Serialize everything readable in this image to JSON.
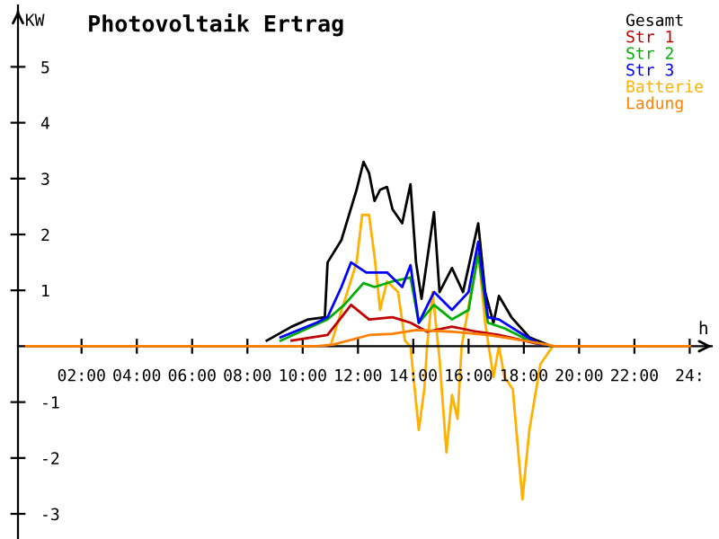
{
  "chart_data": {
    "type": "line",
    "title": "Photovoltaik Ertrag",
    "ylabel": "KW",
    "xlabel": "h",
    "xlim": [
      -0.3,
      24.8
    ],
    "ylim": [
      -3.45,
      6.1
    ],
    "xticks": [
      {
        "value": 2,
        "label": "02:00"
      },
      {
        "value": 4,
        "label": "04:00"
      },
      {
        "value": 6,
        "label": "06:00"
      },
      {
        "value": 8,
        "label": "08:00"
      },
      {
        "value": 10,
        "label": "10:00"
      },
      {
        "value": 12,
        "label": "12:00"
      },
      {
        "value": 14,
        "label": "14:00"
      },
      {
        "value": 16,
        "label": "16:00"
      },
      {
        "value": 18,
        "label": "18:00"
      },
      {
        "value": 20,
        "label": "20:00"
      },
      {
        "value": 22,
        "label": "22:00"
      },
      {
        "value": 24,
        "label": "24:"
      }
    ],
    "yticks": [
      -3,
      -2,
      -1,
      1,
      2,
      3,
      4,
      5
    ],
    "legend": "top right",
    "grid": false,
    "marker": "none",
    "line_style": "solid",
    "series": [
      {
        "name": "Gesamt",
        "color": "#000000",
        "x": [
          8.7,
          9.6,
          10.2,
          10.8,
          10.9,
          11.4,
          11.95,
          12.2,
          12.4,
          12.6,
          12.8,
          13.05,
          13.25,
          13.6,
          13.9,
          14.1,
          14.3,
          14.75,
          14.95,
          15.4,
          15.8,
          16.35,
          16.6,
          16.9,
          17.1,
          17.55,
          18.2,
          18.85
        ],
        "values": [
          0.1,
          0.35,
          0.48,
          0.52,
          1.5,
          1.9,
          2.8,
          3.3,
          3.1,
          2.6,
          2.8,
          2.85,
          2.45,
          2.2,
          2.9,
          1.5,
          0.85,
          2.4,
          0.97,
          1.4,
          0.97,
          2.2,
          0.97,
          0.42,
          0.9,
          0.52,
          0.16,
          0.03
        ]
      },
      {
        "name": "Str 1",
        "color": "#c00000",
        "x": [
          9.6,
          10.9,
          11.75,
          12.4,
          13.25,
          13.9,
          14.5,
          15.4,
          16.3,
          17.1,
          18.0,
          18.6
        ],
        "values": [
          0.1,
          0.2,
          0.74,
          0.48,
          0.52,
          0.42,
          0.26,
          0.35,
          0.26,
          0.2,
          0.1,
          0.03
        ]
      },
      {
        "name": "Str 2",
        "color": "#00b000",
        "x": [
          9.2,
          10.9,
          11.5,
          12.2,
          12.6,
          13.25,
          13.9,
          14.2,
          14.75,
          15.4,
          16.0,
          16.35,
          16.7,
          17.3,
          18.2,
          18.6
        ],
        "values": [
          0.1,
          0.48,
          0.74,
          1.13,
          1.06,
          1.16,
          1.23,
          0.42,
          0.74,
          0.48,
          0.65,
          1.65,
          0.42,
          0.32,
          0.1,
          0.03
        ]
      },
      {
        "name": "Str 3",
        "color": "#0000ff",
        "x": [
          9.2,
          10.5,
          10.9,
          11.4,
          11.75,
          12.3,
          13.05,
          13.6,
          13.9,
          14.2,
          14.75,
          15.4,
          16.0,
          16.35,
          16.7,
          17.1,
          18.0,
          18.6
        ],
        "values": [
          0.16,
          0.42,
          0.52,
          1.06,
          1.5,
          1.32,
          1.32,
          1.06,
          1.45,
          0.42,
          0.97,
          0.65,
          0.97,
          1.87,
          0.52,
          0.48,
          0.2,
          0.03
        ]
      },
      {
        "name": "Batterie",
        "color": "#ffb000",
        "x": [
          11.0,
          11.95,
          12.15,
          12.4,
          12.6,
          12.8,
          13.05,
          13.45,
          13.7,
          13.9,
          14.2,
          14.4,
          14.5,
          14.7,
          14.95,
          15.2,
          15.4,
          15.6,
          15.75,
          16.35,
          16.6,
          16.9,
          17.1,
          17.3,
          17.6,
          17.95,
          18.2,
          18.6,
          19.05
        ],
        "values": [
          0,
          1.5,
          2.35,
          2.35,
          1.6,
          0.65,
          1.16,
          0.97,
          0.1,
          0,
          -1.5,
          -0.77,
          0,
          0.97,
          -0.23,
          -1.9,
          -0.87,
          -1.3,
          0,
          1.7,
          0.42,
          -0.55,
          0,
          -0.55,
          -0.77,
          -2.74,
          -1.5,
          -0.32,
          0
        ]
      },
      {
        "name": "Ladung",
        "color": "#ff8000",
        "x": [
          0,
          10.5,
          11.1,
          12.4,
          13.25,
          14.1,
          15.4,
          16.7,
          18.0,
          18.85,
          19.1,
          24
        ],
        "values": [
          0,
          0,
          0.03,
          0.2,
          0.22,
          0.29,
          0.26,
          0.2,
          0.1,
          0.03,
          0,
          0
        ]
      }
    ]
  }
}
